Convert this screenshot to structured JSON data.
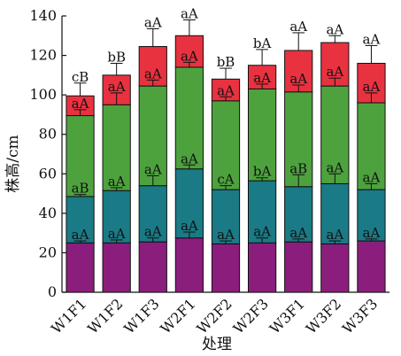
{
  "chart_data": {
    "type": "bar",
    "stacked": true,
    "xlabel": "处理",
    "ylabel": "株高/cm",
    "ylim": [
      0,
      140
    ],
    "yticks": [
      0,
      20,
      40,
      60,
      80,
      100,
      120,
      140
    ],
    "categories": [
      "W1F1",
      "W1F2",
      "W1F3",
      "W2F1",
      "W2F2",
      "W2F3",
      "W3F1",
      "W3F2",
      "W3F3"
    ],
    "series": [
      {
        "color": "#8b1e7c",
        "values": [
          25,
          25,
          25.5,
          27.5,
          24.5,
          25,
          25.5,
          24.5,
          26
        ],
        "errors": [
          1,
          1.5,
          2,
          3,
          1.5,
          2.5,
          1.5,
          1.5,
          1
        ],
        "labels": [
          "aA",
          "aA",
          "aA",
          "aA",
          "aA",
          "aA",
          "aA",
          "aA",
          "aA"
        ]
      },
      {
        "color": "#1a7a85",
        "values": [
          23.5,
          26.5,
          28.5,
          35,
          27.5,
          31.5,
          28,
          30.5,
          26
        ],
        "errors": [
          1,
          1.5,
          5,
          2,
          2,
          1.5,
          6,
          5,
          3
        ],
        "labels": [
          "aB",
          "aA",
          "aA",
          "aA",
          "cA",
          "bA",
          "aB",
          "aA",
          "aA"
        ]
      },
      {
        "color": "#4ea23e",
        "values": [
          41,
          43.5,
          50.5,
          51.5,
          45,
          46.5,
          48,
          49.5,
          44
        ],
        "errors": [
          3,
          6,
          3,
          2.5,
          2,
          2.5,
          3.5,
          4,
          5
        ],
        "labels": [
          "aA",
          "aA",
          "aA",
          "aA",
          "aA",
          "aA",
          "aA",
          "aA",
          "aA"
        ]
      },
      {
        "color": "#e83240",
        "values": [
          10,
          15,
          20,
          16,
          11,
          12,
          21,
          22,
          20
        ],
        "errors": [
          6.5,
          6,
          9,
          8,
          5.5,
          8,
          9,
          3.5,
          9
        ],
        "labels": [
          "cB",
          "bB",
          "aA",
          "aA",
          "bB",
          "bA",
          "aA",
          "aA",
          "aA"
        ]
      }
    ]
  }
}
